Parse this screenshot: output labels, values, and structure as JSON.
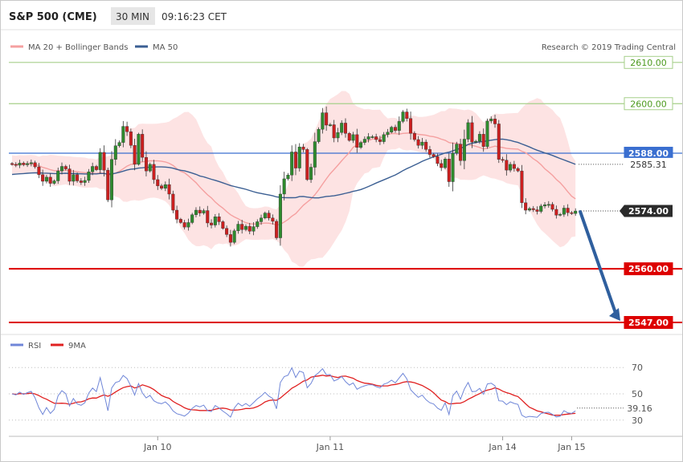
{
  "header": {
    "symbol": "S&P 500 (CME)",
    "timeframe": "30 MIN",
    "clock": "09:16:23 CET"
  },
  "legend": {
    "ma20_bb": "MA 20 + Bollinger Bands",
    "ma50": "MA 50",
    "copyright": "Research © 2019 Trading Central"
  },
  "colors": {
    "bull": "#2e8b2e",
    "bear": "#cc1f1f",
    "band_fill": "#fde3e3",
    "ma20": "#f5a0a0",
    "ma50": "#3b5f93",
    "resistance": "#a6cf8a",
    "support": "#dd0000",
    "blue_level": "#3a6fd0",
    "arrow": "#2f5f9e",
    "rsi": "#6f86d8",
    "rsi_ma": "#e02020"
  },
  "chart_data": [
    {
      "type": "candlestick",
      "ylim": [
        2544,
        2618
      ],
      "x_labels": [
        "Jan 10",
        "Jan 11",
        "Jan 14",
        "Jan 15"
      ],
      "levels": [
        {
          "value": "2610.00",
          "kind": "resistance"
        },
        {
          "value": "2600.00",
          "kind": "resistance"
        },
        {
          "value": "2588.00",
          "kind": "pivot"
        },
        {
          "value": "2585.31",
          "kind": "ma50"
        },
        {
          "value": "2574.00",
          "kind": "last"
        },
        {
          "value": "2560.00",
          "kind": "support"
        },
        {
          "value": "2547.00",
          "kind": "support"
        }
      ],
      "close": [
        2585.3,
        2585.1,
        2585.6,
        2585.2,
        2585.5,
        2585.7,
        2584.7,
        2582.8,
        2581.2,
        2582.2,
        2580.7,
        2581.3,
        2583.7,
        2584.8,
        2584.2,
        2581.2,
        2582.8,
        2581.3,
        2580.9,
        2581.4,
        2583.5,
        2584.8,
        2584.0,
        2588.2,
        2583.9,
        2576.7,
        2586.5,
        2589.8,
        2590.6,
        2594.5,
        2593.2,
        2589.9,
        2585.3,
        2592.6,
        2587.0,
        2583.7,
        2585.3,
        2581.6,
        2580.1,
        2579.5,
        2580.4,
        2578.1,
        2574.2,
        2572.0,
        2571.2,
        2570.1,
        2571.2,
        2573.1,
        2574.2,
        2573.5,
        2574.1,
        2571.1,
        2570.6,
        2572.6,
        2571.4,
        2569.8,
        2568.3,
        2566.4,
        2569.2,
        2570.8,
        2569.5,
        2570.3,
        2569.1,
        2570.2,
        2571.4,
        2572.3,
        2573.5,
        2572.3,
        2571.5,
        2567.5,
        2578.1,
        2581.8,
        2582.7,
        2588.3,
        2584.4,
        2589.5,
        2588.9,
        2581.6,
        2584.6,
        2590.8,
        2593.8,
        2597.8,
        2594.8,
        2594.9,
        2591.7,
        2593.0,
        2595.3,
        2592.8,
        2591.1,
        2592.5,
        2589.4,
        2590.6,
        2591.4,
        2592.0,
        2592.0,
        2591.3,
        2590.8,
        2592.5,
        2593.1,
        2594.3,
        2593.5,
        2595.7,
        2598.0,
        2596.4,
        2592.8,
        2591.3,
        2589.9,
        2590.7,
        2588.9,
        2587.7,
        2587.2,
        2585.5,
        2584.5,
        2586.6,
        2581.1,
        2588.0,
        2590.2,
        2586.2,
        2591.4,
        2595.4,
        2590.7,
        2590.9,
        2592.6,
        2589.6,
        2595.8,
        2596.3,
        2595.1,
        2586.5,
        2586.3,
        2583.9,
        2585.3,
        2584.3,
        2583.7,
        2576.0,
        2574.2,
        2574.6,
        2574.3,
        2573.9,
        2575.2,
        2575.5,
        2575.6,
        2574.4,
        2573.0,
        2573.2,
        2574.7,
        2573.6,
        2573.4,
        2574.0
      ],
      "rsi": {
        "ylim": [
          20,
          80
        ],
        "ticks": [
          70,
          50,
          30
        ],
        "last": "39.16",
        "legend": [
          "RSI",
          "9MA"
        ]
      }
    }
  ]
}
